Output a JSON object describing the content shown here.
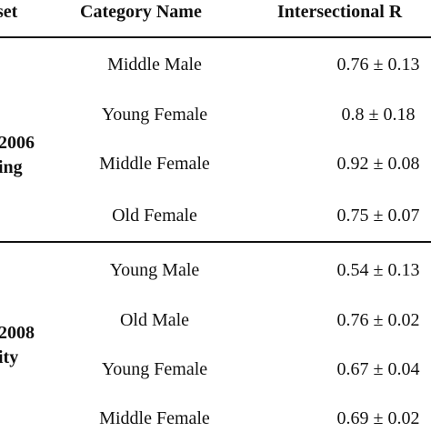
{
  "table": {
    "headers": {
      "dataset": "set",
      "category": "Category Name",
      "intersectional": "Intersectional R"
    },
    "groups": [
      {
        "dataset_line1": "2006",
        "dataset_line2": "ing",
        "rows": [
          {
            "category": "Middle Male",
            "value": "0.76 ± 0.13"
          },
          {
            "category": "Young Female",
            "value": "0.8 ± 0.18"
          },
          {
            "category": "Middle Female",
            "value": "0.92 ± 0.08"
          },
          {
            "category": "Old Female",
            "value": "0.75 ± 0.07"
          }
        ]
      },
      {
        "dataset_line1": "2008",
        "dataset_line2": "ity",
        "rows": [
          {
            "category": "Young Male",
            "value": "0.54 ± 0.13"
          },
          {
            "category": "Old Male",
            "value": "0.76 ± 0.02"
          },
          {
            "category": "Young Female",
            "value": "0.67 ± 0.04"
          },
          {
            "category": "Middle Female",
            "value": "0.69 ± 0.02"
          }
        ]
      }
    ]
  }
}
